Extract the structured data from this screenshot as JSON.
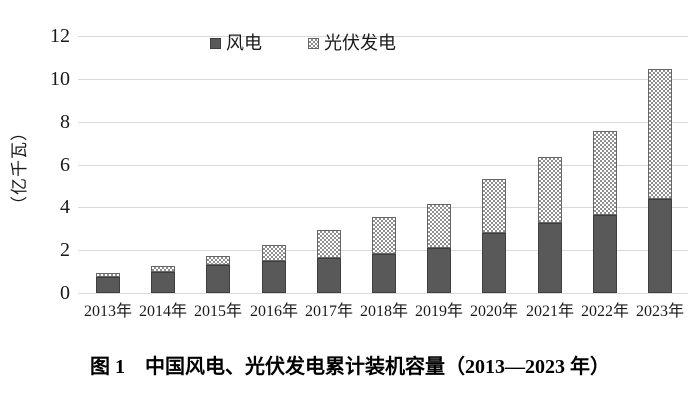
{
  "figure": {
    "caption": "图 1　中国风电、光伏发电累计装机容量（2013—2023 年）"
  },
  "chart_data": {
    "type": "bar",
    "stacked": true,
    "title": "",
    "y_axis_title": "（亿千瓦）",
    "xlabel": "",
    "ylabel": "（亿千瓦）",
    "categories": [
      "2013年",
      "2014年",
      "2015年",
      "2016年",
      "2017年",
      "2018年",
      "2019年",
      "2020年",
      "2021年",
      "2022年",
      "2023年"
    ],
    "series": [
      {
        "name": "风电",
        "style": "solid",
        "color": "#595959",
        "values": [
          0.77,
          0.96,
          1.31,
          1.49,
          1.64,
          1.84,
          2.1,
          2.82,
          3.28,
          3.65,
          4.41
        ]
      },
      {
        "name": "光伏发电",
        "style": "checker",
        "color": "#8f8f8f",
        "values": [
          0.19,
          0.28,
          0.43,
          0.77,
          1.3,
          1.75,
          2.04,
          2.53,
          3.07,
          3.93,
          6.09
        ]
      }
    ],
    "ylim": [
      0,
      12
    ],
    "y_tick_step": 2,
    "y_ticks": [
      0,
      2,
      4,
      6,
      8,
      10,
      12
    ],
    "grid": "horizontal",
    "gridline_color": "#d9d9d9",
    "legend_position": "top-center"
  }
}
